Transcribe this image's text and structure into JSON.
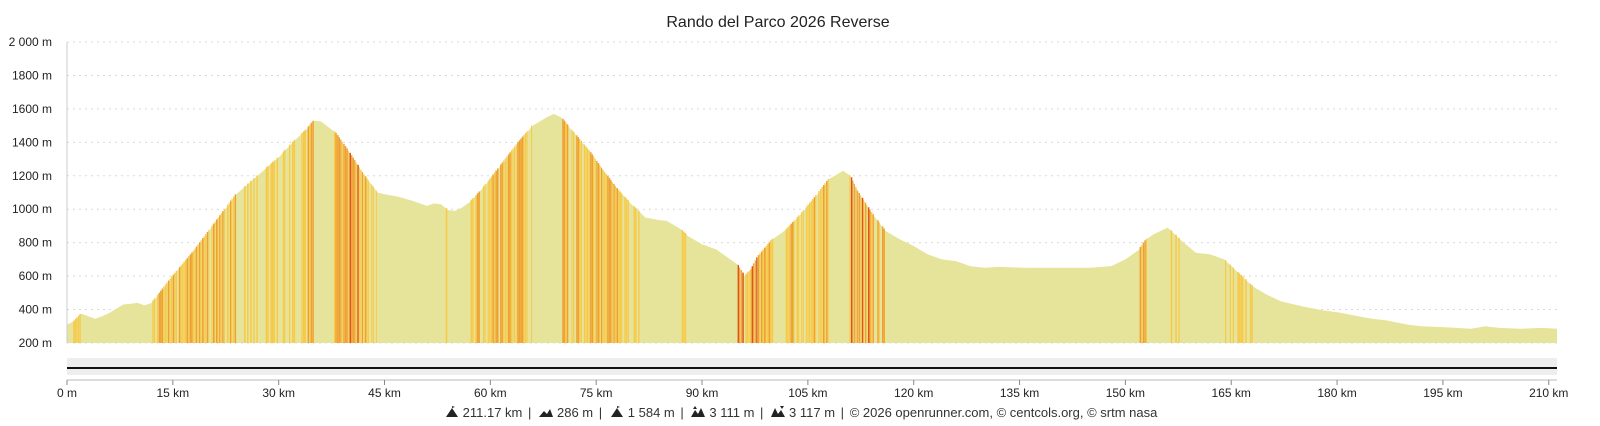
{
  "chart_data": {
    "type": "area",
    "title": "Rando del Parco 2026 Reverse",
    "x_unit": "km",
    "y_unit": "m",
    "xlim": [
      0,
      211.17
    ],
    "ylim": [
      200,
      2000
    ],
    "x_ticks": [
      0,
      15,
      30,
      45,
      60,
      75,
      90,
      105,
      120,
      135,
      150,
      165,
      180,
      195,
      210
    ],
    "x_tick_labels": [
      "0 m",
      "15 km",
      "30 km",
      "45 km",
      "60 km",
      "75 km",
      "90 km",
      "105 km",
      "120 km",
      "135 km",
      "150 km",
      "165 km",
      "180 km",
      "195 km",
      "210 km"
    ],
    "y_ticks": [
      200,
      400,
      600,
      800,
      1000,
      1200,
      1400,
      1600,
      1800,
      2000
    ],
    "y_tick_labels": [
      "200 m",
      "400 m",
      "600 m",
      "800 m",
      "1000 m",
      "1200 m",
      "1400 m",
      "1600 m",
      "1800 m",
      "2 000 m"
    ],
    "grid": true,
    "colors": {
      "flat": "#e6e49a",
      "moderate": "#f7c948",
      "steep": "#f0a030",
      "very_steep": "#e0531f"
    },
    "series": [
      {
        "x": [
          0,
          1,
          2,
          3,
          4,
          5,
          6,
          8,
          10,
          11,
          12,
          13,
          15,
          18,
          21,
          24,
          27,
          30,
          32,
          34,
          35,
          36,
          38,
          40,
          42,
          44,
          45,
          47,
          49,
          51,
          52,
          53,
          54,
          55,
          56,
          57,
          58,
          60,
          62,
          64,
          66,
          68,
          69,
          70,
          72,
          74,
          76,
          78,
          80,
          82,
          84,
          85,
          87,
          88,
          90,
          92,
          93,
          94,
          95,
          96,
          97,
          98,
          100,
          102,
          104,
          106,
          108,
          110,
          111,
          112,
          114,
          116,
          118,
          120,
          122,
          124,
          126,
          128,
          130,
          132,
          136,
          140,
          145,
          148,
          150,
          152,
          153,
          154,
          156,
          158,
          160,
          162,
          164,
          166,
          168,
          170,
          172,
          175,
          178,
          180,
          183,
          185,
          187,
          190,
          192,
          195,
          197,
          199,
          201,
          203,
          206,
          209,
          211.17
        ],
        "y": [
          310,
          330,
          375,
          360,
          345,
          360,
          380,
          430,
          440,
          425,
          440,
          490,
          600,
          750,
          920,
          1090,
          1200,
          1310,
          1400,
          1480,
          1530,
          1525,
          1460,
          1340,
          1210,
          1100,
          1090,
          1075,
          1050,
          1020,
          1035,
          1030,
          995,
          990,
          1010,
          1040,
          1080,
          1180,
          1290,
          1400,
          1500,
          1550,
          1570,
          1550,
          1450,
          1350,
          1230,
          1120,
          1030,
          950,
          935,
          930,
          880,
          840,
          790,
          760,
          730,
          700,
          670,
          600,
          640,
          720,
          820,
          880,
          970,
          1070,
          1180,
          1230,
          1200,
          1110,
          980,
          870,
          820,
          780,
          730,
          700,
          690,
          660,
          650,
          655,
          650,
          650,
          650,
          660,
          700,
          760,
          820,
          850,
          890,
          810,
          740,
          730,
          700,
          620,
          540,
          490,
          450,
          420,
          395,
          385,
          360,
          345,
          335,
          310,
          300,
          295,
          290,
          285,
          300,
          290,
          285,
          290,
          285
        ]
      }
    ]
  },
  "footer": {
    "distance": "211.17 km",
    "min_elevation": "286 m",
    "max_elevation": "1 584 m",
    "elevation_gain": "3 111 m",
    "elevation_loss": "3 117 m",
    "credits": "© 2026 openrunner.com, © centcols.org, © srtm nasa"
  }
}
